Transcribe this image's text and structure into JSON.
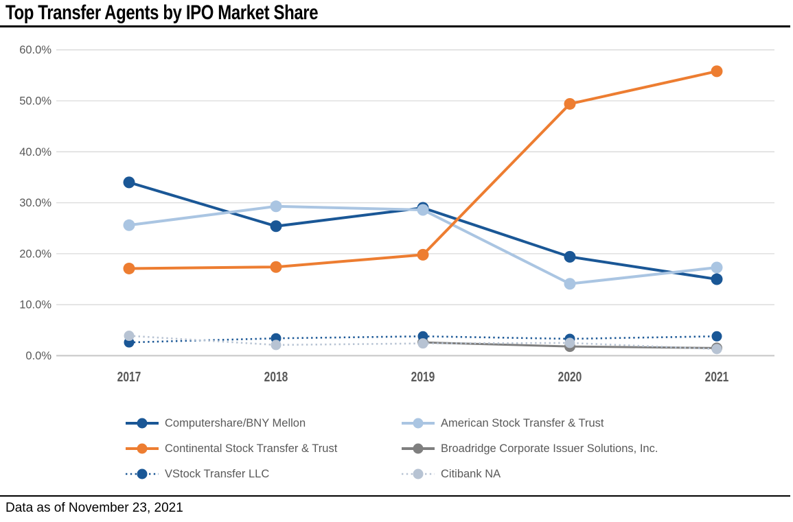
{
  "title": "Top Transfer Agents by IPO Market Share",
  "footnote": "Data as of November 23, 2021",
  "colors": {
    "dark_blue": "#1A5796",
    "light_blue": "#AAC5E2",
    "orange": "#ED7D31",
    "gray": "#7F7F7F",
    "light_gray_blue": "#B7C3D3",
    "gridline": "#D9D9D9",
    "baseline": "#C6C6C6",
    "axis_text": "#595959",
    "title_text": "#000000"
  },
  "chart_data": {
    "type": "line",
    "title": "Top Transfer Agents by IPO Market Share",
    "x": [
      "2017",
      "2018",
      "2019",
      "2020",
      "2021"
    ],
    "xlabel": "",
    "ylabel": "",
    "ylim": [
      0,
      60
    ],
    "grid": true,
    "legend_position": "bottom",
    "y_ticks": [
      0,
      10,
      20,
      30,
      40,
      50,
      60
    ],
    "y_tick_labels": [
      "0.0%",
      "10.0%",
      "20.0%",
      "30.0%",
      "40.0%",
      "50.0%",
      "60.0%"
    ],
    "series": [
      {
        "name": "Computershare/BNY Mellon",
        "color": "#1A5796",
        "style": "solid",
        "values": [
          34.0,
          25.4,
          29.0,
          19.4,
          15.0
        ]
      },
      {
        "name": "American Stock Transfer & Trust",
        "color": "#AAC5E2",
        "style": "solid",
        "values": [
          25.6,
          29.3,
          28.6,
          14.1,
          17.3
        ]
      },
      {
        "name": "Continental Stock Transfer & Trust",
        "color": "#ED7D31",
        "style": "solid",
        "values": [
          17.1,
          17.4,
          19.8,
          49.4,
          55.8
        ]
      },
      {
        "name": "Broadridge Corporate Issuer Solutions, Inc.",
        "color": "#7F7F7F",
        "style": "solid",
        "values": [
          null,
          null,
          2.6,
          1.8,
          1.5
        ]
      },
      {
        "name": "VStock Transfer LLC",
        "color": "#1A5796",
        "style": "dotted",
        "values": [
          2.6,
          3.4,
          3.8,
          3.3,
          3.8
        ]
      },
      {
        "name": "Citibank NA",
        "color": "#B7C3D3",
        "style": "dotted",
        "values": [
          3.9,
          2.1,
          2.4,
          2.5,
          1.3
        ]
      }
    ],
    "legend_rows": [
      [
        0,
        1
      ],
      [
        2,
        3
      ],
      [
        4,
        5
      ]
    ]
  }
}
